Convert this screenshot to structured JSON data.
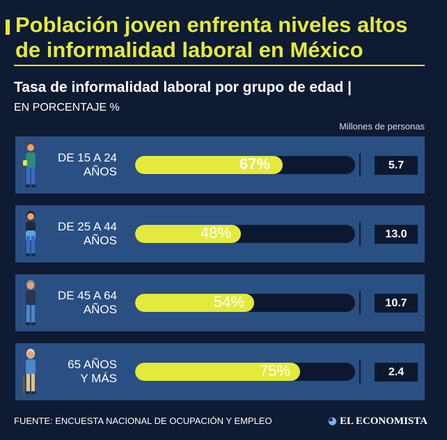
{
  "title_line1": "Población joven enfrenta niveles altos",
  "title_line2": "de informalidad laboral en México",
  "subtitle": "Tasa de informalidad laboral por grupo de edad |",
  "unit_label": "EN PORCENTAJE %",
  "column_header": "Millones de personas",
  "chart_data": {
    "type": "bar",
    "orientation": "horizontal",
    "xlim": [
      0,
      100
    ],
    "categories": [
      {
        "line1": "DE 15 A 24",
        "line2": "AÑOS"
      },
      {
        "line1": "DE 25 A 44",
        "line2": "AÑOS"
      },
      {
        "line1": "DE 45 A 64",
        "line2": "AÑOS"
      },
      {
        "line1": "65 AÑOS",
        "line2": "Y MÁS"
      }
    ],
    "values": [
      67,
      48,
      54,
      75
    ],
    "value_labels": [
      "67%",
      "48%",
      "54%",
      "75%"
    ],
    "secondary_values": [
      "5.7",
      "13.0",
      "10.7",
      "2.4"
    ],
    "highlight_index": 0,
    "bar_color": "#e4ea3b",
    "track_color": "#0d1830"
  },
  "icons": [
    "young-woman-icon",
    "adult-woman-icon",
    "middle-aged-woman-icon",
    "elderly-woman-icon"
  ],
  "source": "FUENTE: ENCUESTA NACIONAL DE OCUPACIÓN Y EMPLEO",
  "brand": "EL ECONOMISTA",
  "colors": {
    "background": "#0f1a33",
    "row": "#2a4f82",
    "accent": "#e4ea3b",
    "text": "#ffffff"
  }
}
